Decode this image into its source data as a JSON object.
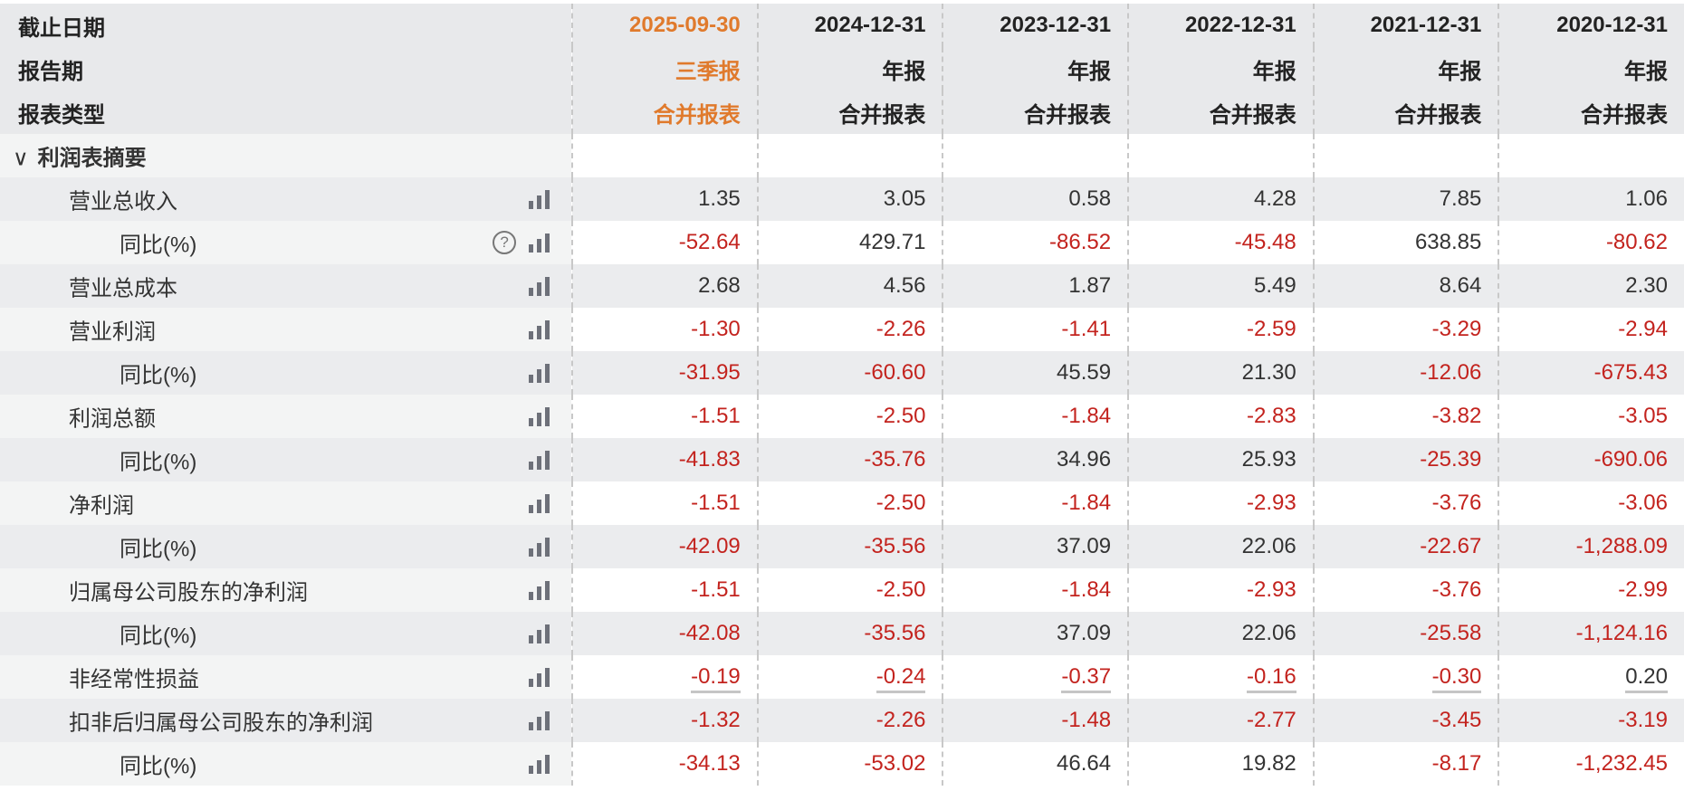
{
  "header": {
    "rows": [
      {
        "label": "截止日期",
        "values": [
          "2025-09-30",
          "2024-12-31",
          "2023-12-31",
          "2022-12-31",
          "2021-12-31",
          "2020-12-31"
        ]
      },
      {
        "label": "报告期",
        "values": [
          "三季报",
          "年报",
          "年报",
          "年报",
          "年报",
          "年报"
        ]
      },
      {
        "label": "报表类型",
        "values": [
          "合并报表",
          "合并报表",
          "合并报表",
          "合并报表",
          "合并报表",
          "合并报表"
        ]
      }
    ],
    "highlight_color": "#e07a2c"
  },
  "section": {
    "label": "利润表摘要",
    "icon": "chevron-down-icon",
    "expanded": true
  },
  "colors": {
    "negative": "#c3231e",
    "positive": "#333333"
  },
  "rows": [
    {
      "label": "营业总收入",
      "indent": 1,
      "values": [
        "1.35",
        "3.05",
        "0.58",
        "4.28",
        "7.85",
        "1.06"
      ]
    },
    {
      "label": "同比(%)",
      "indent": 2,
      "help": true,
      "values": [
        "-52.64",
        "429.71",
        "-86.52",
        "-45.48",
        "638.85",
        "-80.62"
      ]
    },
    {
      "label": "营业总成本",
      "indent": 1,
      "values": [
        "2.68",
        "4.56",
        "1.87",
        "5.49",
        "8.64",
        "2.30"
      ]
    },
    {
      "label": "营业利润",
      "indent": 1,
      "values": [
        "-1.30",
        "-2.26",
        "-1.41",
        "-2.59",
        "-3.29",
        "-2.94"
      ]
    },
    {
      "label": "同比(%)",
      "indent": 2,
      "values": [
        "-31.95",
        "-60.60",
        "45.59",
        "21.30",
        "-12.06",
        "-675.43"
      ]
    },
    {
      "label": "利润总额",
      "indent": 1,
      "values": [
        "-1.51",
        "-2.50",
        "-1.84",
        "-2.83",
        "-3.82",
        "-3.05"
      ]
    },
    {
      "label": "同比(%)",
      "indent": 2,
      "values": [
        "-41.83",
        "-35.76",
        "34.96",
        "25.93",
        "-25.39",
        "-690.06"
      ]
    },
    {
      "label": "净利润",
      "indent": 1,
      "values": [
        "-1.51",
        "-2.50",
        "-1.84",
        "-2.93",
        "-3.76",
        "-3.06"
      ]
    },
    {
      "label": "同比(%)",
      "indent": 2,
      "values": [
        "-42.09",
        "-35.56",
        "37.09",
        "22.06",
        "-22.67",
        "-1,288.09"
      ]
    },
    {
      "label": "归属母公司股东的净利润",
      "indent": 1,
      "values": [
        "-1.51",
        "-2.50",
        "-1.84",
        "-2.93",
        "-3.76",
        "-2.99"
      ]
    },
    {
      "label": "同比(%)",
      "indent": 2,
      "values": [
        "-42.08",
        "-35.56",
        "37.09",
        "22.06",
        "-25.58",
        "-1,124.16"
      ]
    },
    {
      "label": "非经常性损益",
      "indent": 1,
      "underline": true,
      "values": [
        "-0.19",
        "-0.24",
        "-0.37",
        "-0.16",
        "-0.30",
        "0.20"
      ]
    },
    {
      "label": "扣非后归属母公司股东的净利润",
      "indent": 1,
      "values": [
        "-1.32",
        "-2.26",
        "-1.48",
        "-2.77",
        "-3.45",
        "-3.19"
      ]
    },
    {
      "label": "同比(%)",
      "indent": 2,
      "values": [
        "-34.13",
        "-53.02",
        "46.64",
        "19.82",
        "-8.17",
        "-1,232.45"
      ]
    }
  ]
}
